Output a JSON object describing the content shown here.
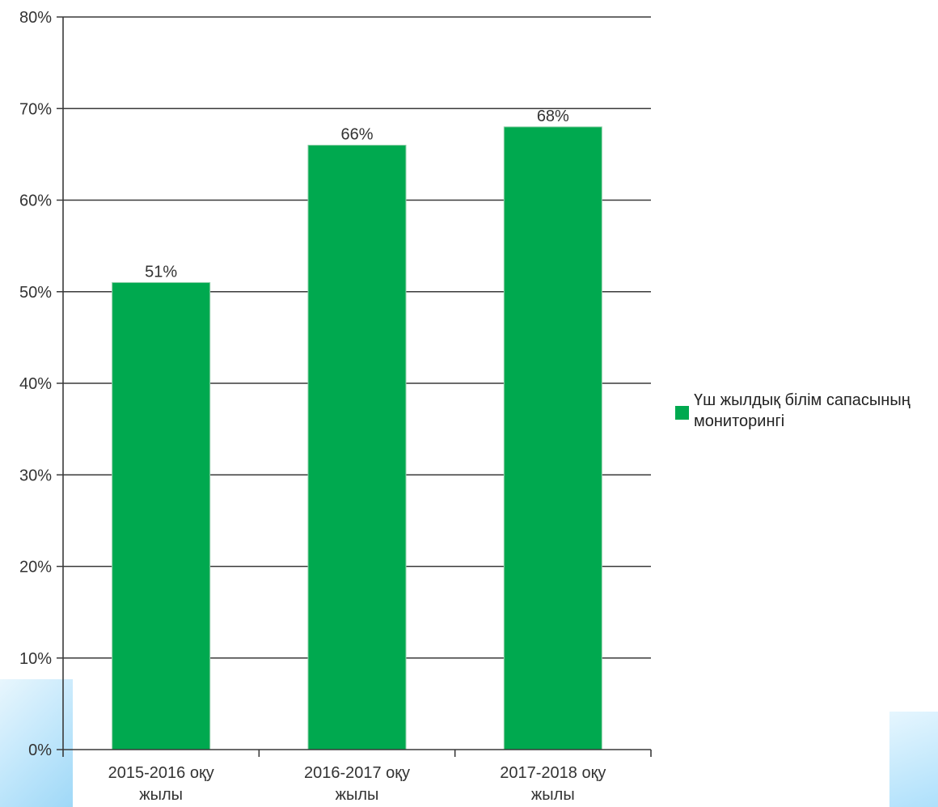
{
  "chart_data": {
    "type": "bar",
    "categories": [
      "2015-2016 оқу жылы",
      "2016-2017 оқу жылы",
      "2017-2018 оқу жылы"
    ],
    "series": [
      {
        "name": "Үш жылдық білім сапасының мониторингі",
        "values": [
          51,
          66,
          68
        ],
        "value_labels": [
          "51%",
          "66%",
          "68%"
        ],
        "color": "#00a94f"
      }
    ],
    "ylim": [
      0,
      80
    ],
    "yticks": [
      0,
      10,
      20,
      30,
      40,
      50,
      60,
      70,
      80
    ],
    "ytick_labels": [
      "0%",
      "10%",
      "20%",
      "30%",
      "40%",
      "50%",
      "60%",
      "70%",
      "80%"
    ],
    "grid": true,
    "legend_position": "right"
  }
}
